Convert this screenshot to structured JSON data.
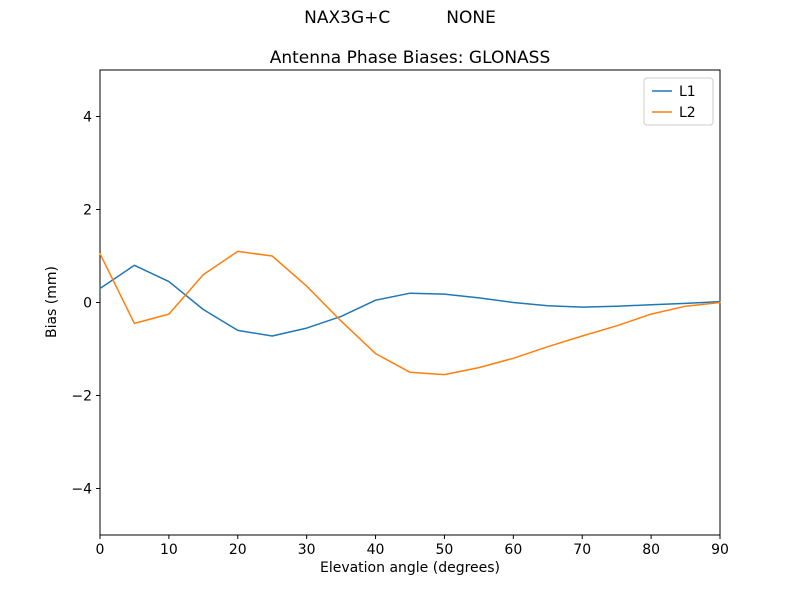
{
  "header": {
    "suptitle_left": "NAX3G+C",
    "suptitle_right": "NONE"
  },
  "chart_data": {
    "type": "line",
    "title": "Antenna Phase Biases: GLONASS",
    "xlabel": "Elevation angle (degrees)",
    "ylabel": "Bias (mm)",
    "xlim": [
      0,
      90
    ],
    "ylim": [
      -5,
      5
    ],
    "xticks": [
      0,
      10,
      20,
      30,
      40,
      50,
      60,
      70,
      80,
      90
    ],
    "yticks": [
      -4,
      -2,
      0,
      2,
      4
    ],
    "grid": false,
    "legend_position": "upper right",
    "x": [
      0,
      5,
      10,
      15,
      20,
      25,
      30,
      35,
      40,
      45,
      50,
      55,
      60,
      65,
      70,
      75,
      80,
      85,
      90
    ],
    "series": [
      {
        "name": "L1",
        "color": "#1f77b4",
        "values": [
          0.3,
          0.8,
          0.45,
          -0.15,
          -0.6,
          -0.72,
          -0.55,
          -0.3,
          0.05,
          0.2,
          0.18,
          0.1,
          0.0,
          -0.07,
          -0.1,
          -0.08,
          -0.05,
          -0.02,
          0.02
        ]
      },
      {
        "name": "L2",
        "color": "#ff7f0e",
        "values": [
          1.05,
          -0.45,
          -0.25,
          0.6,
          1.1,
          1.0,
          0.35,
          -0.4,
          -1.1,
          -1.5,
          -1.55,
          -1.4,
          -1.2,
          -0.95,
          -0.72,
          -0.5,
          -0.25,
          -0.08,
          0.0
        ]
      }
    ],
    "legend_labels": [
      "L1",
      "L2"
    ],
    "axis_color": "#000000",
    "legend_border_color": "#cccccc"
  }
}
